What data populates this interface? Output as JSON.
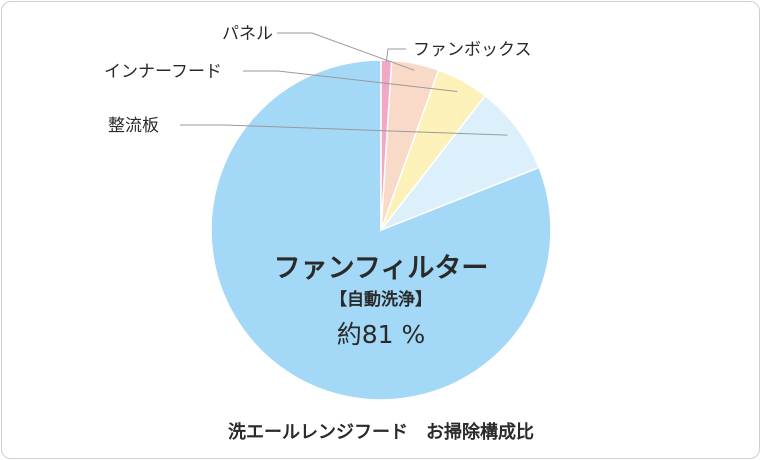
{
  "chart_data": {
    "type": "pie",
    "title": "洗エールレンジフード　お掃除構成比",
    "start_angle_deg": 0,
    "direction": "counterclockwise",
    "slices": [
      {
        "label": "ファンフィルター",
        "sub": "【自動洗浄】",
        "note": "約81 %",
        "value": 81,
        "color": "#a3d8f6"
      },
      {
        "label": "整流板",
        "value": 8.5,
        "color": "#dcf0fb"
      },
      {
        "label": "インナーフード",
        "value": 5,
        "color": "#fcf2b9"
      },
      {
        "label": "パネル",
        "value": 4.5,
        "color": "#f9d9c8"
      },
      {
        "label": "ファンボックス",
        "value": 1,
        "color": "#f3a7c7"
      }
    ]
  }
}
